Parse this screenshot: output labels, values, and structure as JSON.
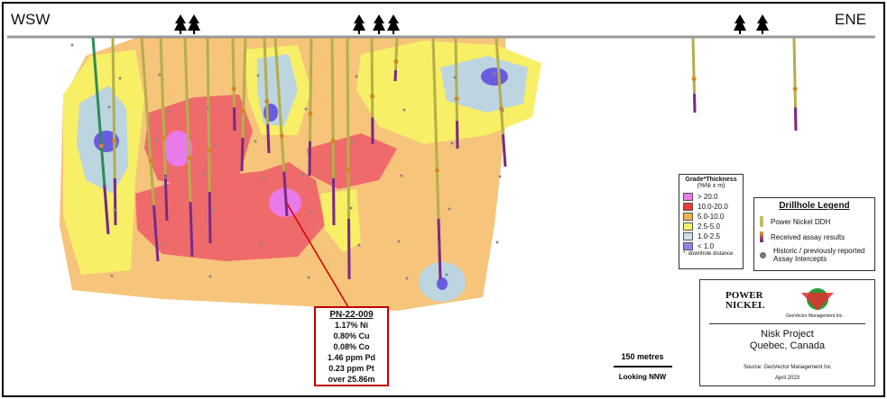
{
  "header": {
    "left_label": "WSW",
    "right_label": "ENE"
  },
  "callout": {
    "title": "PN-22-009",
    "lines": [
      "1.17% Ni",
      "0.80% Cu",
      "0.08% Co",
      "1.46 ppm Pd",
      "0.23 ppm Pt",
      "over 25.86m"
    ]
  },
  "grade_legend": {
    "title": "Grade*Thickness",
    "unit": "(%Ni x m)",
    "items": [
      "> 20.0",
      "10.0-20.0",
      "5.0-10.0",
      "2.5-5.0",
      "1.0-2.5",
      "< 1.0"
    ],
    "note": "*: downhole distance"
  },
  "drillhole_legend": {
    "title": "Drillhole Legend",
    "items": [
      "Power Nickel DDH",
      "Received assay results",
      "Historic / previously reported Assay Intercepts"
    ]
  },
  "title_block": {
    "logo_power": "POWER",
    "logo_nickel": "NICKEL",
    "logo_geovector": "GeoVector Management Inc.",
    "project": "Nisk Project",
    "location": "Quebec, Canada",
    "source": "Source: GeoVector Management Inc",
    "date": "April 2023"
  },
  "scale": {
    "label": "150 metres",
    "view": "Looking NNW"
  }
}
